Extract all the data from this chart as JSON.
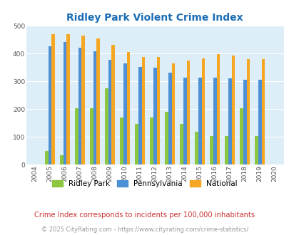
{
  "title": "Ridley Park Violent Crime Index",
  "years": [
    2004,
    2005,
    2006,
    2007,
    2008,
    2009,
    2010,
    2011,
    2012,
    2013,
    2014,
    2015,
    2016,
    2017,
    2018,
    2019,
    2020
  ],
  "ridley_park": [
    0,
    48,
    33,
    202,
    202,
    275,
    170,
    146,
    170,
    190,
    146,
    118,
    102,
    102,
    202,
    102,
    0
  ],
  "pennsylvania": [
    0,
    427,
    442,
    420,
    409,
    378,
    365,
    352,
    349,
    330,
    314,
    314,
    314,
    312,
    305,
    305,
    0
  ],
  "national": [
    0,
    469,
    471,
    466,
    455,
    432,
    406,
    387,
    387,
    365,
    376,
    383,
    397,
    394,
    380,
    379,
    0
  ],
  "bar_width": 0.22,
  "ridley_color": "#8dc63f",
  "pa_color": "#4d90d5",
  "national_color": "#f5a623",
  "plot_bg": "#ddeef8",
  "title_color": "#1a6db5",
  "subtitle": "Crime Index corresponds to incidents per 100,000 inhabitants",
  "footer": "© 2025 CityRating.com - https://www.cityrating.com/crime-statistics/",
  "ylim": [
    0,
    500
  ],
  "yticks": [
    0,
    100,
    200,
    300,
    400,
    500
  ]
}
